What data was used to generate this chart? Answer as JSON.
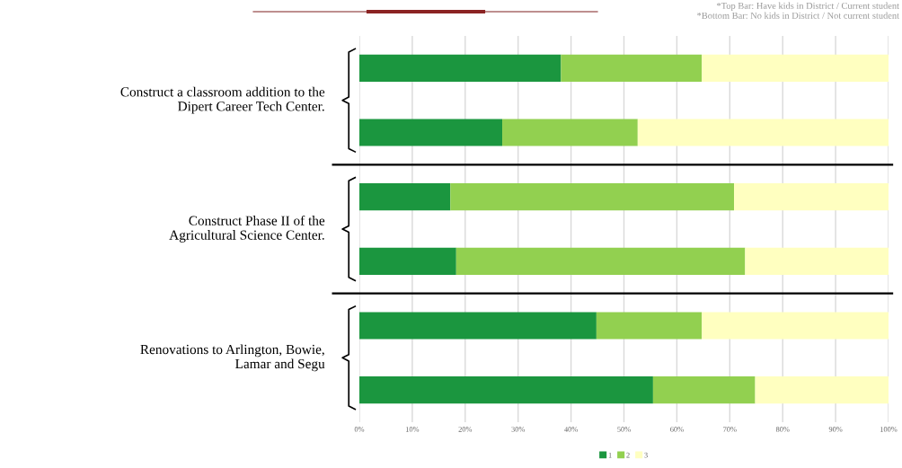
{
  "chart_data": {
    "type": "bar",
    "orientation": "horizontal",
    "stacked": true,
    "categories": [
      null,
      null,
      null,
      null,
      null,
      null
    ],
    "series": [
      {
        "name": "1",
        "color": "#1b963f",
        "values": [
          38.1,
          27.0,
          17.2,
          18.3,
          44.8,
          55.5
        ]
      },
      {
        "name": "2",
        "color": "#92d050",
        "values": [
          26.6,
          25.6,
          53.6,
          54.6,
          19.9,
          19.3
        ]
      },
      {
        "name": "3",
        "color": "#ffffc0",
        "values": [
          35.3,
          47.4,
          29.2,
          27.1,
          35.3,
          25.2
        ]
      }
    ],
    "xlim": [
      0,
      100
    ],
    "xticks": [
      {
        "value": 0,
        "label": "0%"
      },
      {
        "value": 10,
        "label": "10%"
      },
      {
        "value": 20,
        "label": "20%"
      },
      {
        "value": 30,
        "label": "30%"
      },
      {
        "value": 40,
        "label": "40%"
      },
      {
        "value": 50,
        "label": "50%"
      },
      {
        "value": 60,
        "label": "60%"
      },
      {
        "value": 70,
        "label": "70%"
      },
      {
        "value": 80,
        "label": "80%"
      },
      {
        "value": 90,
        "label": "90%"
      },
      {
        "value": 100,
        "label": "100%"
      }
    ],
    "annotations": [
      "Construct a classroom addition to the\nDipert Career Tech Center.",
      "Construct Phase II of the\nAgricultural Science Center.",
      "Renovations to Arlington, Bowie,\nLamar and Segu",
      "*Top Bar: Have kids in District / Current student\n*Bottom Bar: No kids in District / Not current student"
    ],
    "grid": "x",
    "legend": "bottom"
  }
}
